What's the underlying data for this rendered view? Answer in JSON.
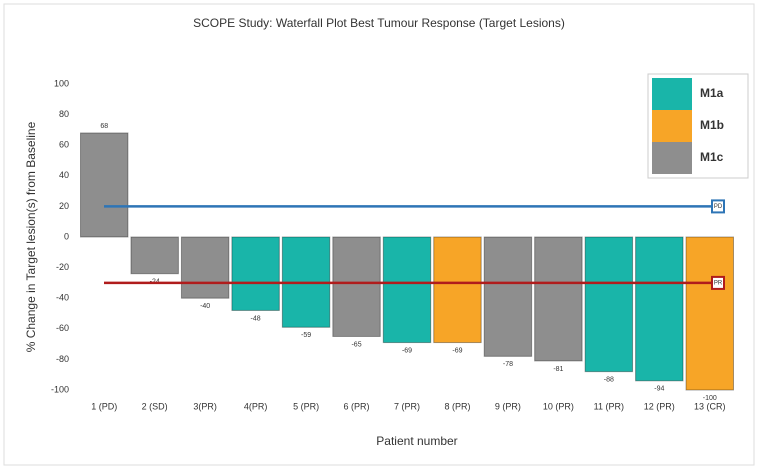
{
  "chart_data": {
    "type": "bar",
    "title": "SCOPE Study: Waterfall Plot Best Tumour Response (Target Lesions)",
    "x_label": "Patient number",
    "y_label": "% Change in Target lesion(s) from Baseline",
    "categories": [
      "1 (PD)",
      "2 (SD)",
      "3(PR)",
      "4(PR)",
      "5 (PR)",
      "6 (PR)",
      "7 (PR)",
      "8 (PR)",
      "9 (PR)",
      "10 (PR)",
      "11 (PR)",
      "12 (PR)",
      "13 (CR)"
    ],
    "series": [
      {
        "name": "M1a",
        "color": "#19b5a9",
        "values": [
          null,
          null,
          null,
          -48,
          -59,
          null,
          -69,
          null,
          null,
          null,
          -88,
          -94,
          null
        ]
      },
      {
        "name": "M1b",
        "color": "#f7a527",
        "values": [
          null,
          null,
          null,
          null,
          null,
          null,
          null,
          -69,
          null,
          null,
          null,
          null,
          -100
        ]
      },
      {
        "name": "M1c",
        "color": "#8e8e8e",
        "values": [
          68,
          -24,
          -40,
          null,
          null,
          -65,
          null,
          null,
          -78,
          -81,
          null,
          null,
          null
        ]
      }
    ],
    "reference_lines": [
      {
        "label": "PD",
        "value": 20,
        "color": "#2e75b6"
      },
      {
        "label": "PR",
        "value": -30,
        "color": "#b01c1c"
      }
    ],
    "ylim": [
      -100,
      100
    ],
    "yticks": [
      -100,
      -80,
      -60,
      -40,
      -20,
      0,
      20,
      40,
      60,
      80,
      100
    ],
    "grid": false,
    "legend": "top-right"
  }
}
